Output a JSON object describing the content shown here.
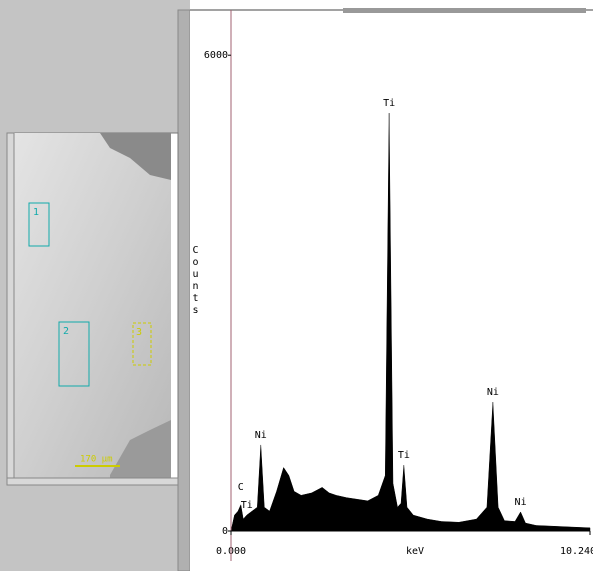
{
  "chart_data": {
    "type": "area",
    "color": "#000000",
    "x_label": "keV",
    "y_label": "Counts",
    "x": [
      0,
      0.1,
      0.2,
      0.28,
      0.35,
      0.45,
      0.6,
      0.75,
      0.85,
      0.95,
      1.1,
      1.3,
      1.5,
      1.65,
      1.8,
      2.0,
      2.3,
      2.6,
      2.8,
      3.0,
      3.3,
      3.6,
      3.9,
      4.2,
      4.4,
      4.51,
      4.62,
      4.75,
      4.85,
      4.93,
      5.02,
      5.2,
      5.6,
      6.0,
      6.5,
      7.0,
      7.3,
      7.47,
      7.62,
      7.8,
      8.1,
      8.26,
      8.4,
      8.7,
      9.2,
      9.7,
      10.24
    ],
    "values": [
      0,
      200,
      250,
      330,
      150,
      200,
      250,
      300,
      1085,
      300,
      250,
      500,
      800,
      700,
      500,
      450,
      480,
      550,
      480,
      450,
      420,
      400,
      380,
      450,
      700,
      5270,
      600,
      300,
      350,
      830,
      300,
      200,
      150,
      120,
      110,
      150,
      300,
      1625,
      300,
      130,
      120,
      240,
      100,
      70,
      60,
      50,
      40
    ],
    "xlim": [
      0,
      10.24
    ],
    "ylim": [
      0,
      6570
    ],
    "xticks": [
      {
        "value": 0,
        "label": "0.000"
      },
      {
        "value": 10.24,
        "label": "10.240"
      }
    ],
    "yticks": [
      0,
      6000
    ],
    "annotations": [
      {
        "text": "C",
        "x": 0.28
      },
      {
        "text": "Ti",
        "x": 0.45
      },
      {
        "text": "Ni",
        "x": 0.85
      },
      {
        "text": "Ti",
        "x": 4.51
      },
      {
        "text": "Ti",
        "x": 4.93
      },
      {
        "text": "Ni",
        "x": 7.47
      },
      {
        "text": "Ni",
        "x": 8.26
      }
    ]
  },
  "image": {
    "regions": [
      "1",
      "2",
      "3"
    ],
    "scale_bar": "170 µm"
  }
}
